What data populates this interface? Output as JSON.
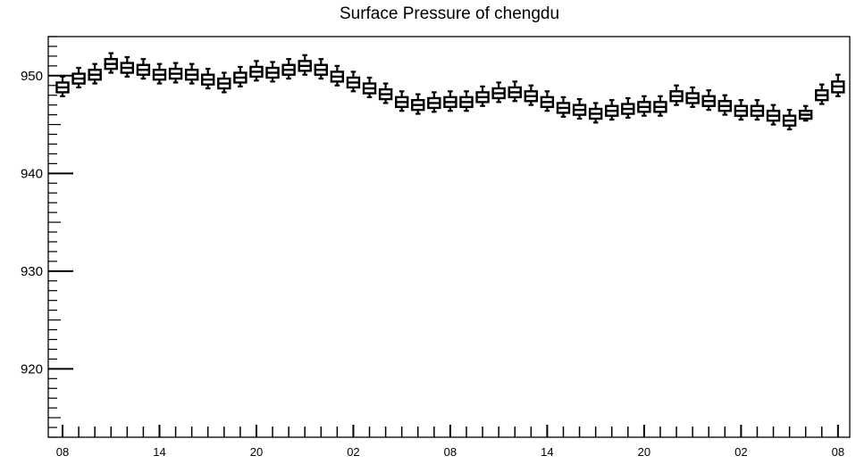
{
  "chart_data": {
    "type": "box",
    "title": "Surface Pressure of chengdu",
    "xlabel": "",
    "ylabel": "",
    "ylim": [
      913,
      954
    ],
    "yticks": [
      920,
      930,
      940,
      950
    ],
    "grid": false,
    "x_tick_labels": [
      "08",
      "14",
      "20",
      "02",
      "08",
      "14",
      "20",
      "02",
      "08"
    ],
    "x_tick_label_hours": [
      0,
      6,
      12,
      18,
      24,
      30,
      36,
      42,
      48
    ],
    "hours": [
      0,
      1,
      2,
      3,
      4,
      5,
      6,
      7,
      8,
      9,
      10,
      11,
      12,
      13,
      14,
      15,
      16,
      17,
      18,
      19,
      20,
      21,
      22,
      23,
      24,
      25,
      26,
      27,
      28,
      29,
      30,
      31,
      32,
      33,
      34,
      35,
      36,
      37,
      38,
      39,
      40,
      41,
      42,
      43,
      44,
      45,
      46,
      47,
      48
    ],
    "median": [
      948.8,
      949.7,
      950.1,
      951.2,
      950.8,
      950.6,
      950.1,
      950.2,
      950.1,
      949.6,
      949.2,
      949.8,
      950.4,
      950.3,
      950.6,
      951.0,
      950.6,
      949.9,
      949.3,
      948.7,
      948.1,
      947.3,
      947.0,
      947.2,
      947.3,
      947.3,
      947.8,
      948.2,
      948.3,
      947.9,
      947.3,
      946.7,
      946.5,
      946.1,
      946.4,
      946.6,
      946.8,
      946.8,
      947.9,
      947.7,
      947.4,
      946.9,
      946.4,
      946.4,
      945.9,
      945.4,
      946.0,
      948.0,
      948.9
    ],
    "q1": [
      948.3,
      949.2,
      949.6,
      950.7,
      950.3,
      950.1,
      949.6,
      949.7,
      949.6,
      949.1,
      948.7,
      949.3,
      949.9,
      949.8,
      950.1,
      950.5,
      950.1,
      949.4,
      948.8,
      948.2,
      947.6,
      946.8,
      946.5,
      946.7,
      946.8,
      946.8,
      947.3,
      947.7,
      947.8,
      947.4,
      946.8,
      946.2,
      946.0,
      945.6,
      945.9,
      946.1,
      946.3,
      946.3,
      947.4,
      947.2,
      946.9,
      946.4,
      945.9,
      945.9,
      945.4,
      944.9,
      945.6,
      947.5,
      948.3
    ],
    "q3": [
      949.3,
      950.2,
      950.6,
      951.7,
      951.3,
      951.1,
      950.6,
      950.7,
      950.6,
      950.1,
      949.7,
      950.3,
      950.9,
      950.8,
      951.1,
      951.5,
      951.1,
      950.4,
      949.8,
      949.2,
      948.6,
      947.8,
      947.5,
      947.7,
      947.8,
      947.8,
      948.3,
      948.7,
      948.8,
      948.4,
      947.8,
      947.2,
      947.0,
      946.6,
      946.9,
      947.1,
      947.3,
      947.3,
      948.4,
      948.2,
      947.9,
      947.4,
      946.9,
      946.9,
      946.4,
      945.9,
      946.4,
      948.5,
      949.4
    ],
    "whisker_low": [
      947.9,
      948.8,
      949.2,
      950.3,
      949.9,
      949.7,
      949.2,
      949.3,
      949.2,
      948.7,
      948.3,
      948.9,
      949.5,
      949.4,
      949.7,
      950.1,
      949.7,
      949.0,
      948.4,
      947.8,
      947.2,
      946.4,
      946.1,
      946.3,
      946.4,
      946.4,
      946.9,
      947.3,
      947.4,
      947.0,
      946.4,
      945.8,
      945.6,
      945.2,
      945.5,
      945.7,
      945.9,
      945.9,
      947.0,
      946.8,
      946.5,
      946.0,
      945.5,
      945.5,
      945.0,
      944.5,
      945.4,
      947.1,
      947.9
    ],
    "whisker_high": [
      949.9,
      950.8,
      951.2,
      952.3,
      951.9,
      951.7,
      951.2,
      951.3,
      951.2,
      950.7,
      950.3,
      950.9,
      951.5,
      951.4,
      951.7,
      952.1,
      951.7,
      951.0,
      950.4,
      949.8,
      949.2,
      948.4,
      948.1,
      948.3,
      948.4,
      948.4,
      948.9,
      949.3,
      949.4,
      949.0,
      948.4,
      947.8,
      947.6,
      947.2,
      947.5,
      947.7,
      947.9,
      947.9,
      949.0,
      948.8,
      948.5,
      948.0,
      947.5,
      947.5,
      947.0,
      946.5,
      946.9,
      949.1,
      950.1
    ]
  }
}
